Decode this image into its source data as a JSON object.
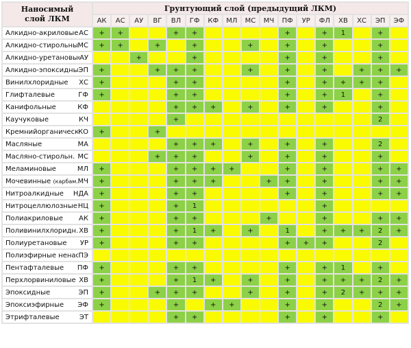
{
  "header": {
    "corner_line1": "Наносимый",
    "corner_line2": "слой ЛКМ",
    "group_title": "Грунтующий слой (предыдущий ЛКМ)"
  },
  "columns": [
    "АК",
    "АС",
    "АУ",
    "ВГ",
    "ВЛ",
    "ГФ",
    "КФ",
    "МЛ",
    "МС",
    "МЧ",
    "ПФ",
    "УР",
    "ФЛ",
    "ХВ",
    "ХС",
    "ЭП",
    "ЭФ"
  ],
  "rows": [
    {
      "name": "Алкидно-акриловые",
      "code": "АС",
      "cells": [
        "+",
        "+",
        "",
        "",
        "+",
        "+",
        "",
        "",
        "",
        "",
        "+",
        "",
        "+",
        "1",
        "",
        "+",
        ""
      ]
    },
    {
      "name": "Алкидно-стирольные",
      "code": "МС",
      "cells": [
        "+",
        "+",
        "",
        "+",
        "",
        "+",
        "",
        "",
        "+",
        "",
        "+",
        "",
        "+",
        "",
        "",
        "+",
        ""
      ]
    },
    {
      "name": "Алкидно-уретановые",
      "code": "АУ",
      "cells": [
        "",
        "",
        "+",
        "",
        "",
        "+",
        "",
        "",
        "",
        "",
        "+",
        "",
        "+",
        "",
        "",
        "+",
        ""
      ]
    },
    {
      "name": "Алкидно-эпоксидные",
      "code": "ЭП",
      "cells": [
        "+",
        "",
        "",
        "+",
        "+",
        "+",
        "",
        "",
        "+",
        "",
        "+",
        "",
        "+",
        "",
        "+",
        "+",
        "+"
      ]
    },
    {
      "name": "Винилхлоридные",
      "code": "ХС",
      "cells": [
        "+",
        "",
        "",
        "",
        "+",
        "+",
        "",
        "",
        "",
        "",
        "+",
        "",
        "+",
        "+",
        "+",
        "+",
        ""
      ]
    },
    {
      "name": "Глифталевые",
      "code": "ГФ",
      "cells": [
        "+",
        "",
        "",
        "",
        "+",
        "+",
        "",
        "",
        "",
        "",
        "+",
        "",
        "+",
        "1",
        "",
        "+",
        ""
      ]
    },
    {
      "name": "Канифольные",
      "code": "КФ",
      "cells": [
        "",
        "",
        "",
        "",
        "+",
        "+",
        "+",
        "",
        "+",
        "",
        "+",
        "",
        "+",
        "",
        "",
        "+",
        ""
      ]
    },
    {
      "name": "Каучуковые",
      "code": "КЧ",
      "cells": [
        "",
        "",
        "",
        "",
        "+",
        "",
        "",
        "",
        "",
        "",
        "",
        "",
        "",
        "",
        "",
        "2",
        ""
      ]
    },
    {
      "name": "Кремнийорганическ.",
      "code": "КО",
      "cells": [
        "+",
        "",
        "",
        "+",
        "",
        "",
        "",
        "",
        "",
        "",
        "",
        "",
        "",
        "",
        "",
        "",
        ""
      ]
    },
    {
      "name": "Масляные",
      "code": "МА",
      "cells": [
        "",
        "",
        "",
        "",
        "+",
        "+",
        "+",
        "",
        "+",
        "",
        "+",
        "",
        "+",
        "",
        "",
        "2",
        ""
      ]
    },
    {
      "name": "Масляно-стирольн.",
      "code": "МС",
      "cells": [
        "",
        "",
        "",
        "+",
        "+",
        "+",
        "",
        "",
        "+",
        "",
        "+",
        "",
        "+",
        "",
        "",
        "+",
        ""
      ]
    },
    {
      "name": "Меламиновые",
      "code": "МЛ",
      "cells": [
        "+",
        "",
        "",
        "",
        "+",
        "+",
        "+",
        "+",
        "",
        "",
        "+",
        "",
        "+",
        "",
        "",
        "+",
        "+"
      ]
    },
    {
      "name": "Мочевинные",
      "small": "(карбам.)",
      "code": "МЧ",
      "cells": [
        "+",
        "",
        "",
        "",
        "+",
        "+",
        "+",
        "",
        "",
        "+",
        "+",
        "",
        "+",
        "",
        "",
        "+",
        "+"
      ]
    },
    {
      "name": "Нитроалкидные",
      "code": "НДА",
      "cells": [
        "+",
        "",
        "",
        "",
        "+",
        "+",
        "",
        "",
        "",
        "",
        "+",
        "",
        "+",
        "",
        "",
        "+",
        "+"
      ]
    },
    {
      "name": "Нитроцеллюлозные",
      "code": "НЦ",
      "cells": [
        "+",
        "",
        "",
        "",
        "+",
        "1",
        "",
        "",
        "",
        "",
        "",
        "",
        "+",
        "",
        "",
        "",
        ""
      ]
    },
    {
      "name": "Полиакриловые",
      "code": "АК",
      "cells": [
        "+",
        "",
        "",
        "",
        "+",
        "+",
        "",
        "",
        "",
        "+",
        "",
        "",
        "+",
        "",
        "",
        "+",
        "+"
      ]
    },
    {
      "name": "Поливинилхлоридн.",
      "code": "ХВ",
      "cells": [
        "+",
        "",
        "",
        "",
        "+",
        "1",
        "+",
        "",
        "+",
        "",
        "1",
        "",
        "+",
        "+",
        "+",
        "2",
        "+"
      ]
    },
    {
      "name": "Полиуретановые",
      "code": "УР",
      "cells": [
        "+",
        "",
        "",
        "",
        "+",
        "+",
        "",
        "",
        "",
        "",
        "+",
        "+",
        "+",
        "",
        "",
        "2",
        ""
      ]
    },
    {
      "name": "Полиэфирные ненас.",
      "code": "ПЭ",
      "cells": [
        "",
        "",
        "",
        "",
        "",
        "",
        "",
        "",
        "",
        "",
        "",
        "",
        "",
        "",
        "",
        "",
        ""
      ]
    },
    {
      "name": "Пентафталевые",
      "code": "ПФ",
      "cells": [
        "+",
        "",
        "",
        "",
        "+",
        "+",
        "",
        "",
        "",
        "",
        "+",
        "",
        "+",
        "1",
        "",
        "+",
        ""
      ]
    },
    {
      "name": "Перхлорвиниловые",
      "code": "ХВ",
      "cells": [
        "+",
        "",
        "",
        "",
        "+",
        "1",
        "+",
        "",
        "+",
        "",
        "+",
        "",
        "+",
        "+",
        "+",
        "2",
        "+"
      ]
    },
    {
      "name": "Эпоксидные",
      "code": "ЭП",
      "cells": [
        "+",
        "",
        "",
        "+",
        "+",
        "+",
        "",
        "",
        "+",
        "",
        "+",
        "",
        "+",
        "2",
        "+",
        "+",
        "+"
      ]
    },
    {
      "name": "Эпоксиэфирные",
      "code": "ЭФ",
      "cells": [
        "+",
        "",
        "",
        "",
        "+",
        "",
        "+",
        "+",
        "",
        "",
        "+",
        "",
        "+",
        "",
        "",
        "2",
        "+"
      ]
    },
    {
      "name": "Этрифталевые",
      "code": "ЭТ",
      "cells": [
        "",
        "",
        "",
        "",
        "+",
        "+",
        "",
        "",
        "",
        "",
        "+",
        "",
        "+",
        "",
        "",
        "+",
        ""
      ]
    }
  ],
  "colors": {
    "compatible": "#8cd147",
    "not_recommended": "#fafa00",
    "header_bg": "#f5e8e8"
  }
}
